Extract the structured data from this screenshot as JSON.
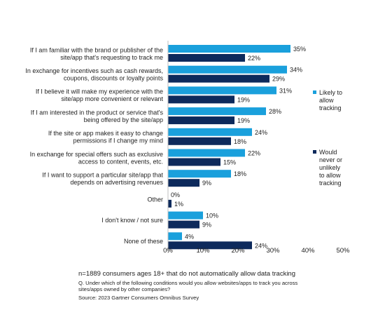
{
  "chart_data": {
    "type": "bar",
    "orientation": "horizontal",
    "categories": [
      [
        "If I am familiar with the brand or publisher of the",
        "site/app that's requesting to track me"
      ],
      [
        "In exchange for incentives such as cash rewards,",
        "coupons, discounts or loyalty points"
      ],
      [
        "If I believe it will make my experience with the",
        "site/app more convenient or relevant"
      ],
      [
        "If I am interested in the product or service that's",
        "being offered by the site/app"
      ],
      [
        "If the site or app makes it easy to change",
        "permissions if I change my mind"
      ],
      [
        "In exchange for special offers such as exclusive",
        "access to content, events, etc."
      ],
      [
        "If I want to support a particular site/app that",
        "depends on advertising revenues"
      ],
      [
        "Other"
      ],
      [
        "I don't know / not sure"
      ],
      [
        "None of these"
      ]
    ],
    "series": [
      {
        "name": [
          "Likely to",
          "allow",
          "tracking"
        ],
        "color": "#1aa0dc",
        "values": [
          35,
          34,
          31,
          28,
          24,
          22,
          18,
          0,
          10,
          4
        ],
        "labels": [
          "35%",
          "34%",
          "31%",
          "28%",
          "24%",
          "22%",
          "18%",
          "0%",
          "10%",
          "4%"
        ]
      },
      {
        "name": [
          "Would",
          "never or",
          "unlikely",
          "to allow",
          "tracking"
        ],
        "color": "#0d2a5c",
        "values": [
          22,
          29,
          19,
          19,
          18,
          15,
          9,
          1,
          9,
          24
        ],
        "labels": [
          "22%",
          "29%",
          "19%",
          "19%",
          "18%",
          "15%",
          "9%",
          "1%",
          "9%",
          "24%"
        ]
      }
    ],
    "xlim": [
      0,
      50
    ],
    "xticks": [
      0,
      10,
      20,
      30,
      40,
      50
    ],
    "xtick_labels": [
      "0%",
      "10%",
      "20%",
      "30%",
      "40%",
      "50%"
    ],
    "legend_position": "right",
    "grid": false
  },
  "notes": {
    "sample": "n=1889 consumers ages 18+ that do not automatically allow data tracking",
    "question": "Q. Under which of the following conditions would you allow websites/apps to track you across sites/apps owned by other companies?",
    "source": "Source: 2023 Gartner Consumers  Omnibus Survey"
  }
}
